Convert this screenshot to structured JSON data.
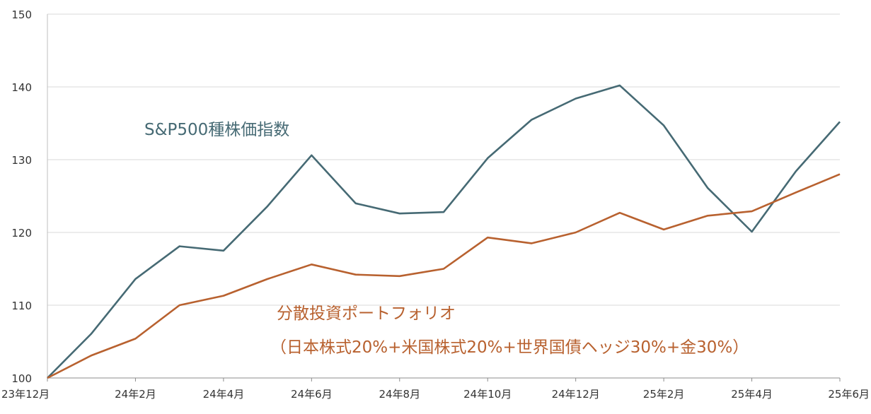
{
  "chart_data": {
    "type": "line",
    "x": [
      "23年12月",
      "24年1月",
      "24年2月",
      "24年3月",
      "24年4月",
      "24年5月",
      "24年6月",
      "24年7月",
      "24年8月",
      "24年9月",
      "24年10月",
      "24年11月",
      "24年12月",
      "25年1月",
      "25年2月",
      "25年3月",
      "25年4月",
      "25年5月",
      "25年6月"
    ],
    "xtick_labels": [
      "23年12月",
      "24年2月",
      "24年4月",
      "24年6月",
      "24年8月",
      "24年10月",
      "24年12月",
      "25年2月",
      "25年4月",
      "25年6月"
    ],
    "yticks": [
      "100",
      "110",
      "120",
      "130",
      "140",
      "150"
    ],
    "ylim": [
      100,
      150
    ],
    "grid": "horizontal",
    "series": [
      {
        "name": "S&P500種株価指数",
        "color": "#466a74",
        "values": [
          100,
          106.1,
          113.6,
          118.1,
          117.5,
          123.6,
          130.6,
          124.0,
          122.6,
          122.8,
          130.2,
          135.5,
          138.4,
          140.2,
          134.7,
          126.1,
          120.1,
          128.4,
          135.2
        ]
      },
      {
        "name": "分散投資ポートフォリオ",
        "subtitle": "（日本株式20%+米国株式20%+世界国債ヘッジ30%+金30%）",
        "color": "#b8612f",
        "values": [
          100,
          103.1,
          105.4,
          110.0,
          111.3,
          113.6,
          115.6,
          114.2,
          114.0,
          115.0,
          119.3,
          118.5,
          120.0,
          122.7,
          120.4,
          122.3,
          122.9,
          125.5,
          128.0
        ]
      }
    ],
    "title": "",
    "xlabel": "",
    "ylabel": ""
  }
}
